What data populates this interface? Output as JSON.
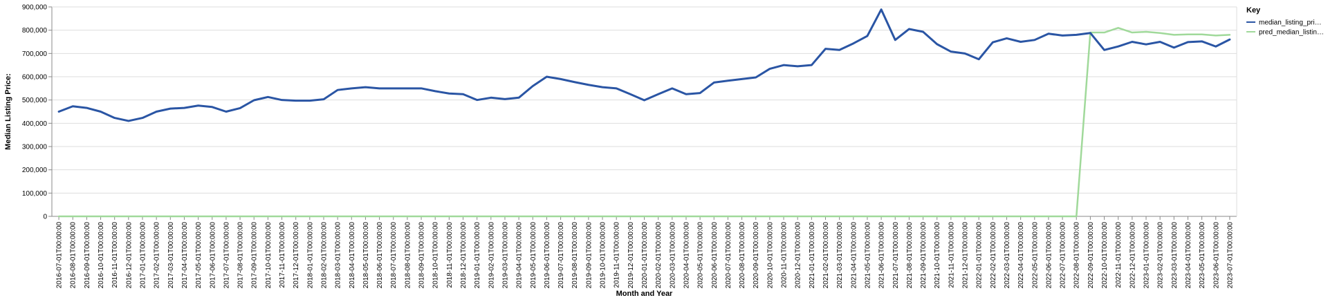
{
  "chart_data": {
    "type": "line",
    "xlabel": "Month and Year",
    "ylabel": "Median Listing Price:",
    "ylim": [
      0,
      900000
    ],
    "yticks": [
      0,
      100000,
      200000,
      300000,
      400000,
      500000,
      600000,
      700000,
      800000,
      900000
    ],
    "ytick_labels": [
      "0",
      "100,000",
      "200,000",
      "300,000",
      "400,000",
      "500,000",
      "600,000",
      "700,000",
      "800,000",
      "900,000"
    ],
    "grid": true,
    "legend": {
      "title": "Key",
      "placement": "top-right"
    },
    "x": [
      "2016-07-01T00:00:00",
      "2016-08-01T00:00:00",
      "2016-09-01T00:00:00",
      "2016-10-01T00:00:00",
      "2016-11-01T00:00:00",
      "2016-12-01T00:00:00",
      "2017-01-01T00:00:00",
      "2017-02-01T00:00:00",
      "2017-03-01T00:00:00",
      "2017-04-01T00:00:00",
      "2017-05-01T00:00:00",
      "2017-06-01T00:00:00",
      "2017-07-01T00:00:00",
      "2017-08-01T00:00:00",
      "2017-09-01T00:00:00",
      "2017-10-01T00:00:00",
      "2017-11-01T00:00:00",
      "2017-12-01T00:00:00",
      "2018-01-01T00:00:00",
      "2018-02-01T00:00:00",
      "2018-03-01T00:00:00",
      "2018-04-01T00:00:00",
      "2018-05-01T00:00:00",
      "2018-06-01T00:00:00",
      "2018-07-01T00:00:00",
      "2018-08-01T00:00:00",
      "2018-09-01T00:00:00",
      "2018-10-01T00:00:00",
      "2018-11-01T00:00:00",
      "2018-12-01T00:00:00",
      "2019-01-01T00:00:00",
      "2019-02-01T00:00:00",
      "2019-03-01T00:00:00",
      "2019-04-01T00:00:00",
      "2019-05-01T00:00:00",
      "2019-06-01T00:00:00",
      "2019-07-01T00:00:00",
      "2019-08-01T00:00:00",
      "2019-09-01T00:00:00",
      "2019-10-01T00:00:00",
      "2019-11-01T00:00:00",
      "2019-12-01T00:00:00",
      "2020-01-01T00:00:00",
      "2020-02-01T00:00:00",
      "2020-03-01T00:00:00",
      "2020-04-01T00:00:00",
      "2020-05-01T00:00:00",
      "2020-06-01T00:00:00",
      "2020-07-01T00:00:00",
      "2020-08-01T00:00:00",
      "2020-09-01T00:00:00",
      "2020-10-01T00:00:00",
      "2020-11-01T00:00:00",
      "2020-12-01T00:00:00",
      "2021-01-01T00:00:00",
      "2021-02-01T00:00:00",
      "2021-03-01T00:00:00",
      "2021-04-01T00:00:00",
      "2021-05-01T00:00:00",
      "2021-06-01T00:00:00",
      "2021-07-01T00:00:00",
      "2021-08-01T00:00:00",
      "2021-09-01T00:00:00",
      "2021-10-01T00:00:00",
      "2021-11-01T00:00:00",
      "2021-12-01T00:00:00",
      "2022-01-01T00:00:00",
      "2022-02-01T00:00:00",
      "2022-03-01T00:00:00",
      "2022-04-01T00:00:00",
      "2022-05-01T00:00:00",
      "2022-06-01T00:00:00",
      "2022-07-01T00:00:00",
      "2022-08-01T00:00:00",
      "2022-09-01T00:00:00",
      "2022-10-01T00:00:00",
      "2022-11-01T00:00:00",
      "2022-12-01T00:00:00",
      "2023-01-01T00:00:00",
      "2023-02-01T00:00:00",
      "2023-03-01T00:00:00",
      "2023-04-01T00:00:00",
      "2023-05-01T00:00:00",
      "2023-06-01T00:00:00",
      "2023-07-01T00:00:00"
    ],
    "series": [
      {
        "name": "median_listing_pri…",
        "color": "#2a55a4",
        "values": [
          450000,
          473000,
          466000,
          450000,
          423000,
          410000,
          423000,
          450000,
          463000,
          466000,
          476000,
          470000,
          450000,
          465000,
          499000,
          513000,
          500000,
          497000,
          497000,
          503000,
          543000,
          550000,
          555000,
          550000,
          550000,
          550000,
          550000,
          538000,
          528000,
          525000,
          500000,
          510000,
          504000,
          510000,
          560000,
          600000,
          590000,
          577000,
          565000,
          555000,
          550000,
          525000,
          499000,
          525000,
          550000,
          525000,
          530000,
          575000,
          583000,
          590000,
          597000,
          634000,
          650000,
          645000,
          650000,
          720000,
          715000,
          743000,
          775000,
          889000,
          758000,
          805000,
          793000,
          740000,
          708000,
          700000,
          675000,
          748000,
          765000,
          750000,
          758000,
          785000,
          777000,
          780000,
          788000,
          715000,
          730000,
          750000,
          739000,
          750000,
          725000,
          749000,
          752000,
          730000,
          760000
        ]
      },
      {
        "name": "pred_median_listin…",
        "color": "#a0d99a",
        "values": [
          0,
          0,
          0,
          0,
          0,
          0,
          0,
          0,
          0,
          0,
          0,
          0,
          0,
          0,
          0,
          0,
          0,
          0,
          0,
          0,
          0,
          0,
          0,
          0,
          0,
          0,
          0,
          0,
          0,
          0,
          0,
          0,
          0,
          0,
          0,
          0,
          0,
          0,
          0,
          0,
          0,
          0,
          0,
          0,
          0,
          0,
          0,
          0,
          0,
          0,
          0,
          0,
          0,
          0,
          0,
          0,
          0,
          0,
          0,
          0,
          0,
          0,
          0,
          0,
          0,
          0,
          0,
          0,
          0,
          0,
          0,
          0,
          0,
          0,
          790000,
          790000,
          810000,
          790000,
          793000,
          788000,
          780000,
          782000,
          782000,
          777000,
          780000
        ]
      }
    ]
  }
}
